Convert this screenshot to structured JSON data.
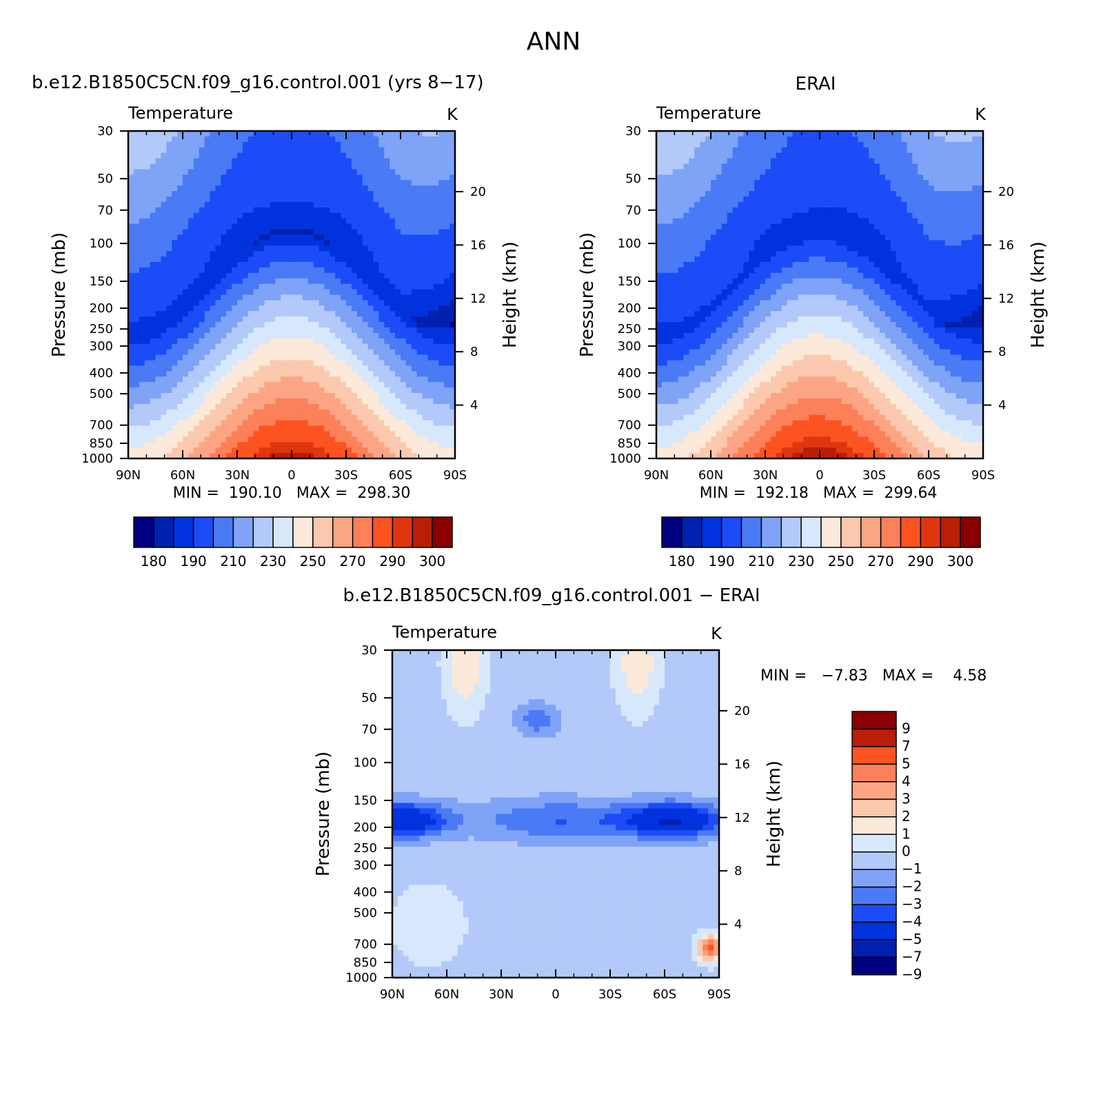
{
  "figure": {
    "title": "ANN",
    "diff_title": "b.e12.B1850C5CN.f09_g16.control.001 − ERAI"
  },
  "colors": {
    "temperature_levels": [
      "#000080",
      "#0020b0",
      "#0033dd",
      "#1c4cf7",
      "#4a7af5",
      "#7fa3f7",
      "#b3c9fa",
      "#d8e8fc",
      "#fde9d9",
      "#fcc8ae",
      "#fca585",
      "#fc8058",
      "#fc5321",
      "#e03610",
      "#b91e06",
      "#8b0000"
    ],
    "difference_levels": [
      "#000080",
      "#0020b0",
      "#0033dd",
      "#1c4cf7",
      "#4a7af5",
      "#7fa3f7",
      "#b3c9fa",
      "#d8e8fc",
      "#fde9d9",
      "#fcc8ae",
      "#fca585",
      "#fc8058",
      "#fc5321",
      "#b91e06",
      "#8b0000"
    ]
  },
  "chart_data": [
    {
      "type": "heatmap",
      "id": "model",
      "case_title": "b.e12.B1850C5CN.f09_g16.control.001 (yrs 8−17)",
      "variable_label": "Temperature",
      "units_label": "K",
      "ylabel": "Pressure (mb)",
      "ylabel_right": "Height (km)",
      "x_ticks": [
        "90N",
        "60N",
        "30N",
        "0",
        "30S",
        "60S",
        "90S"
      ],
      "x_range_deg_lat": [
        90,
        -90
      ],
      "y_ticks": [
        30,
        50,
        70,
        100,
        150,
        200,
        250,
        300,
        400,
        500,
        700,
        850,
        1000
      ],
      "y_range_mb": [
        30,
        1000
      ],
      "y_scale": "log",
      "height_ticks_km": [
        4,
        8,
        12,
        16,
        20
      ],
      "stats_text": "MIN =  190.10   MAX =  298.30",
      "min": 190.1,
      "max": 298.3,
      "colorbar_labels": [
        "180",
        "190",
        "210",
        "230",
        "250",
        "270",
        "290",
        "300"
      ],
      "field": "temperature"
    },
    {
      "type": "heatmap",
      "id": "obs",
      "case_title": "ERAI",
      "variable_label": "Temperature",
      "units_label": "K",
      "ylabel": "Pressure (mb)",
      "ylabel_right": "Height (km)",
      "x_ticks": [
        "90N",
        "60N",
        "30N",
        "0",
        "30S",
        "60S",
        "90S"
      ],
      "x_range_deg_lat": [
        90,
        -90
      ],
      "y_ticks": [
        30,
        50,
        70,
        100,
        150,
        200,
        250,
        300,
        400,
        500,
        700,
        850,
        1000
      ],
      "y_range_mb": [
        30,
        1000
      ],
      "y_scale": "log",
      "height_ticks_km": [
        4,
        8,
        12,
        16,
        20
      ],
      "stats_text": "MIN =  192.18   MAX =  299.64",
      "min": 192.18,
      "max": 299.64,
      "colorbar_labels": [
        "180",
        "190",
        "210",
        "230",
        "250",
        "270",
        "290",
        "300"
      ],
      "field": "temperature"
    },
    {
      "type": "heatmap",
      "id": "diff",
      "variable_label": "Temperature",
      "units_label": "K",
      "ylabel": "Pressure (mb)",
      "ylabel_right": "Height (km)",
      "x_ticks": [
        "90N",
        "60N",
        "30N",
        "0",
        "30S",
        "60S",
        "90S"
      ],
      "x_range_deg_lat": [
        90,
        -90
      ],
      "y_ticks": [
        30,
        50,
        70,
        100,
        150,
        200,
        250,
        300,
        400,
        500,
        700,
        850,
        1000
      ],
      "y_range_mb": [
        30,
        1000
      ],
      "y_scale": "log",
      "height_ticks_km": [
        4,
        8,
        12,
        16,
        20
      ],
      "stats_text": "MIN =   −7.83   MAX =    4.58",
      "min": -7.83,
      "max": 4.58,
      "colorbar_labels": [
        "9",
        "7",
        "5",
        "4",
        "3",
        "2",
        "1",
        "0",
        "−1",
        "−2",
        "−3",
        "−4",
        "−5",
        "−7",
        "−9"
      ],
      "field": "difference"
    }
  ]
}
